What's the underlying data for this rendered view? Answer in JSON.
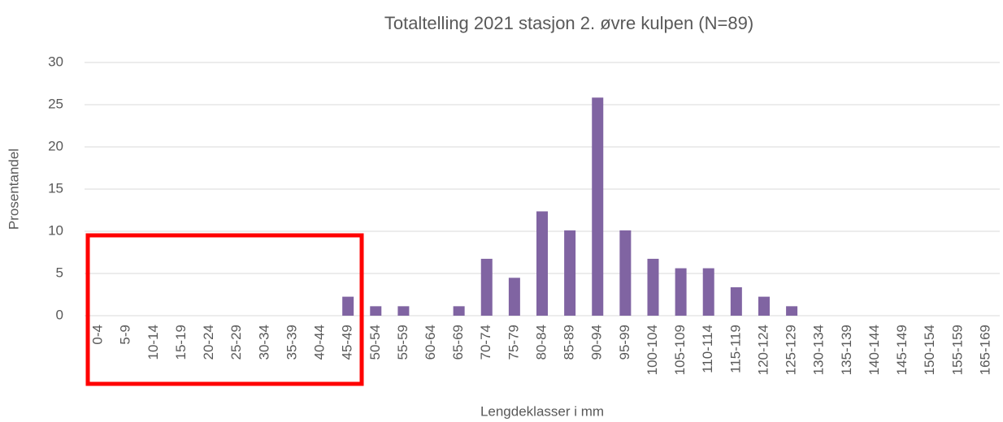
{
  "chart_data": {
    "type": "bar",
    "title": "Totaltelling 2021 stasjon 2. øvre kulpen (N=89)",
    "xlabel": "Lengdeklasser i mm",
    "ylabel": "Prosentandel",
    "categories": [
      "0-4",
      "5-9",
      "10-14",
      "15-19",
      "20-24",
      "25-29",
      "30-34",
      "35-39",
      "40-44",
      "45-49",
      "50-54",
      "55-59",
      "60-64",
      "65-69",
      "70-74",
      "75-79",
      "80-84",
      "85-89",
      "90-94",
      "95-99",
      "100-104",
      "105-109",
      "110-114",
      "115-119",
      "120-124",
      "125-129",
      "130-134",
      "135-139",
      "140-144",
      "145-149",
      "150-154",
      "155-159",
      "165-169"
    ],
    "values": [
      0,
      0,
      0,
      0,
      0,
      0,
      0,
      0,
      0,
      2.25,
      1.12,
      1.12,
      0,
      1.12,
      6.74,
      4.49,
      12.36,
      10.11,
      25.84,
      10.11,
      6.74,
      5.62,
      5.62,
      3.37,
      2.25,
      1.12,
      0,
      0,
      0,
      0,
      0,
      0,
      0
    ],
    "color": "#8064a2",
    "ylim": [
      0,
      30
    ],
    "yticks": [
      0,
      5,
      10,
      15,
      20,
      25,
      30
    ],
    "grid": true
  }
}
